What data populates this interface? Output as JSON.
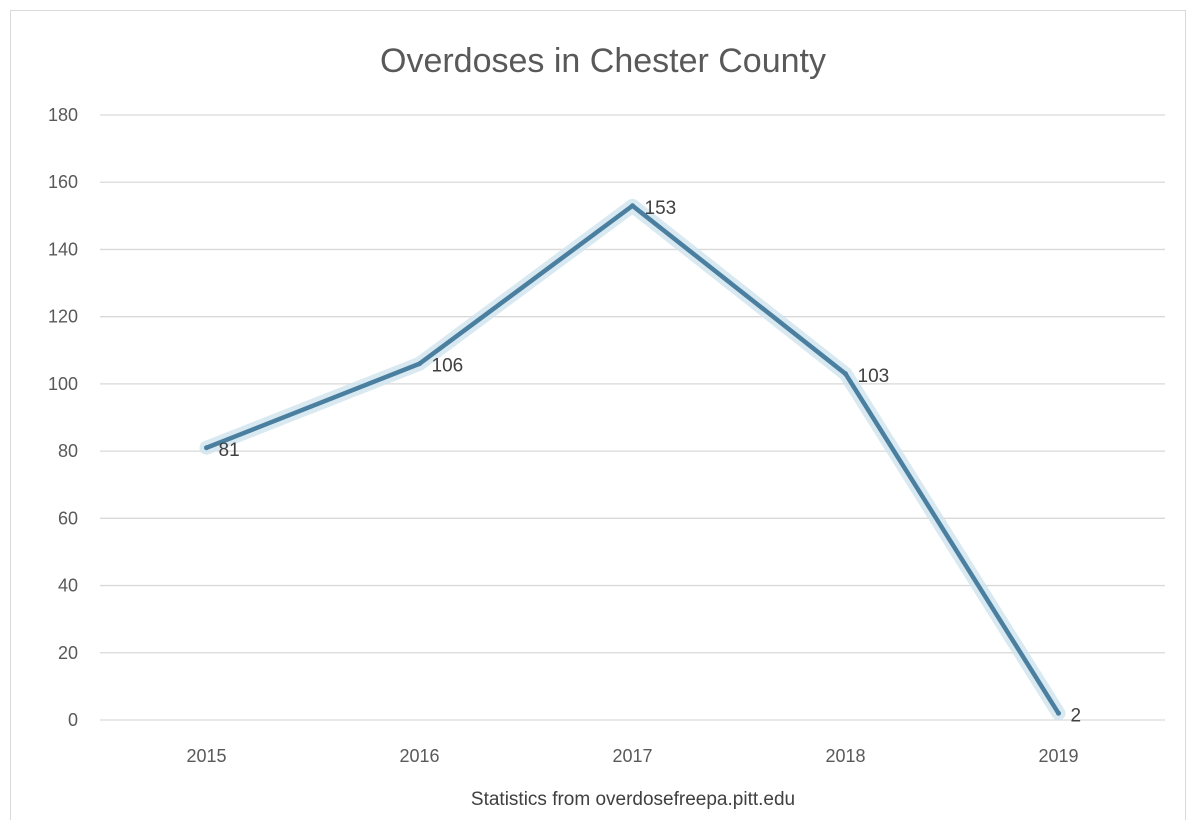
{
  "chart_data": {
    "type": "line",
    "title": "Overdoses in Chester County",
    "categories": [
      "2015",
      "2016",
      "2017",
      "2018",
      "2019"
    ],
    "series": [
      {
        "values": [
          81,
          106,
          153,
          103,
          2
        ],
        "color": "#4a7fa0"
      }
    ],
    "data_labels": [
      "81",
      "106",
      "153",
      "103",
      "2"
    ],
    "yticks": [
      "0",
      "20",
      "40",
      "60",
      "80",
      "100",
      "120",
      "140",
      "160",
      "180"
    ],
    "ylim": [
      0,
      180
    ],
    "grid": true,
    "legend": "none",
    "source_note": "Statistics from overdosefreepa.pitt.edu"
  }
}
